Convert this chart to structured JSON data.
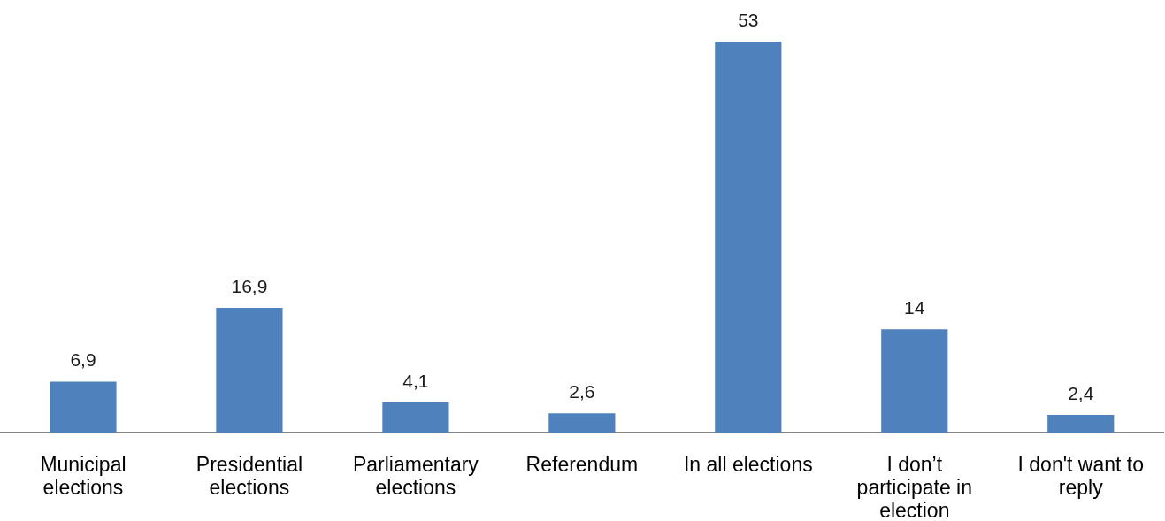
{
  "chart_data": {
    "type": "bar",
    "categories": [
      "Municipal elections",
      "Presidential elections",
      "Parliamentary elections",
      "Referendum",
      "In all elections",
      "I don’t participate in election",
      "I don't want to reply"
    ],
    "values": [
      6.9,
      16.9,
      4.1,
      2.6,
      53,
      14,
      2.4
    ],
    "value_labels": [
      "6,9",
      "16,9",
      "4,1",
      "2,6",
      "53",
      "14",
      "2,4"
    ],
    "color": "#4f81bd",
    "tick_labels": "x"
  }
}
